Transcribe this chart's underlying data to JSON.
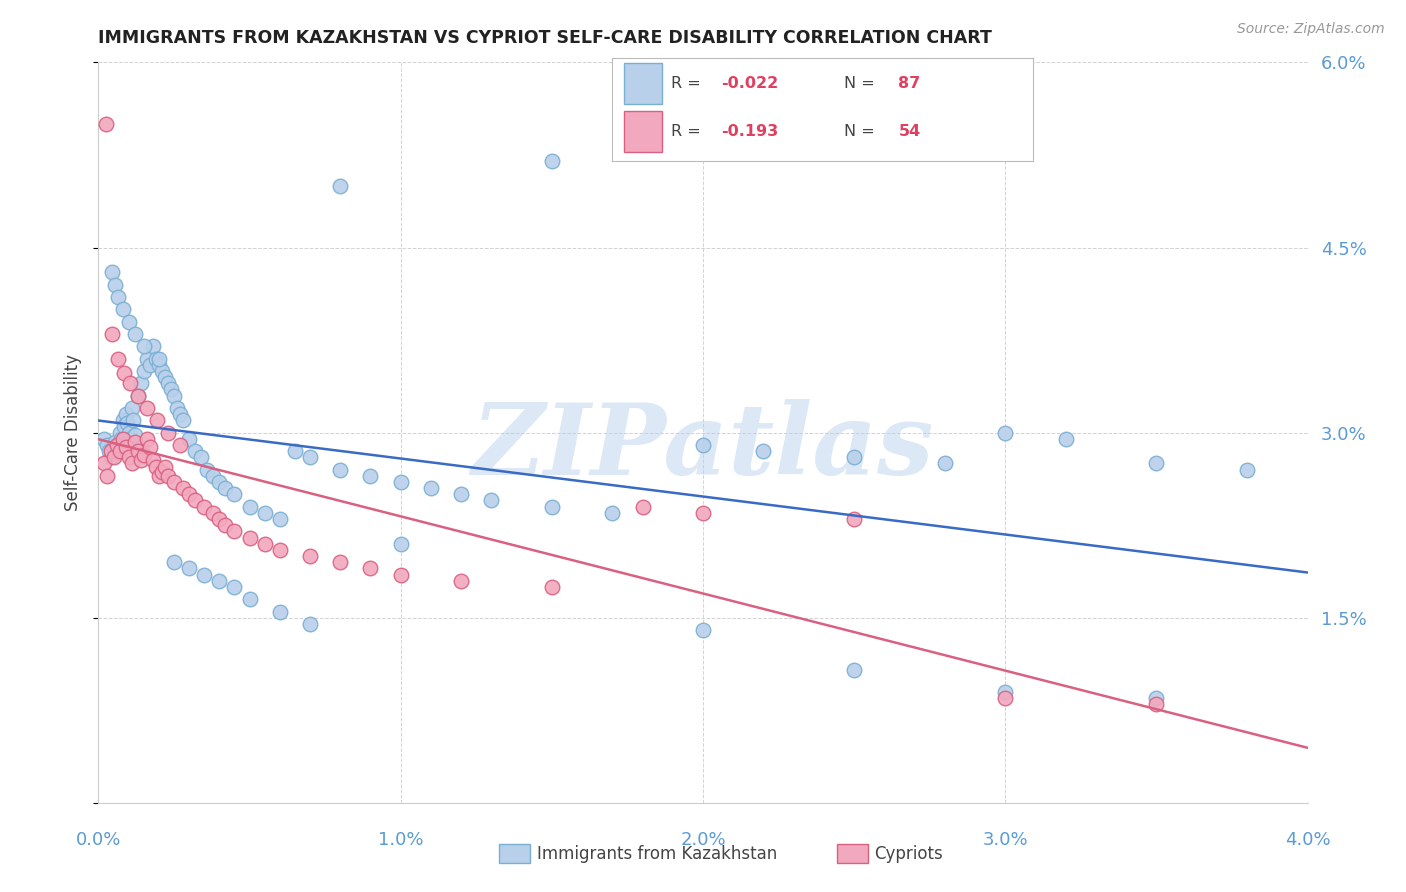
{
  "title": "IMMIGRANTS FROM KAZAKHSTAN VS CYPRIOT SELF-CARE DISABILITY CORRELATION CHART",
  "source": "Source: ZipAtlas.com",
  "ylabel": "Self-Care Disability",
  "x_min": 0.0,
  "x_max": 0.04,
  "y_min": 0.0,
  "y_max": 0.06,
  "x_ticks": [
    0.0,
    0.01,
    0.02,
    0.03,
    0.04
  ],
  "x_tick_labels": [
    "0.0%",
    "1.0%",
    "2.0%",
    "3.0%",
    "4.0%"
  ],
  "y_ticks": [
    0.0,
    0.015,
    0.03,
    0.045,
    0.06
  ],
  "y_tick_labels": [
    "",
    "1.5%",
    "3.0%",
    "4.5%",
    "6.0%"
  ],
  "series_blue": {
    "color": "#b8d0ea",
    "edge_color": "#7aafd4",
    "trend_color": "#3a6bc4",
    "x": [
      0.0002,
      0.0003,
      0.00035,
      0.0004,
      0.0005,
      0.00055,
      0.0006,
      0.00065,
      0.0007,
      0.00075,
      0.0008,
      0.00085,
      0.0009,
      0.00095,
      0.001,
      0.00105,
      0.0011,
      0.00115,
      0.0012,
      0.0013,
      0.0014,
      0.0015,
      0.0016,
      0.0017,
      0.0018,
      0.0019,
      0.002,
      0.0021,
      0.0022,
      0.0023,
      0.0024,
      0.0025,
      0.0026,
      0.0027,
      0.0028,
      0.003,
      0.0032,
      0.0034,
      0.0036,
      0.0038,
      0.004,
      0.0042,
      0.0045,
      0.005,
      0.0055,
      0.006,
      0.0065,
      0.007,
      0.008,
      0.009,
      0.01,
      0.011,
      0.012,
      0.013,
      0.015,
      0.017,
      0.02,
      0.022,
      0.025,
      0.028,
      0.03,
      0.032,
      0.035,
      0.038,
      0.00045,
      0.00055,
      0.00065,
      0.0008,
      0.001,
      0.0012,
      0.0015,
      0.002,
      0.0025,
      0.003,
      0.0035,
      0.004,
      0.0045,
      0.005,
      0.006,
      0.007,
      0.008,
      0.01,
      0.015,
      0.02,
      0.025,
      0.03,
      0.035
    ],
    "y": [
      0.0295,
      0.029,
      0.0285,
      0.028,
      0.0288,
      0.0292,
      0.0285,
      0.029,
      0.03,
      0.0295,
      0.031,
      0.0305,
      0.0315,
      0.0308,
      0.03,
      0.0295,
      0.032,
      0.031,
      0.0298,
      0.033,
      0.034,
      0.035,
      0.036,
      0.0355,
      0.037,
      0.036,
      0.0355,
      0.035,
      0.0345,
      0.034,
      0.0335,
      0.033,
      0.032,
      0.0315,
      0.031,
      0.0295,
      0.0285,
      0.028,
      0.027,
      0.0265,
      0.026,
      0.0255,
      0.025,
      0.024,
      0.0235,
      0.023,
      0.0285,
      0.028,
      0.027,
      0.0265,
      0.026,
      0.0255,
      0.025,
      0.0245,
      0.024,
      0.0235,
      0.029,
      0.0285,
      0.028,
      0.0275,
      0.03,
      0.0295,
      0.0275,
      0.027,
      0.043,
      0.042,
      0.041,
      0.04,
      0.039,
      0.038,
      0.037,
      0.036,
      0.0195,
      0.019,
      0.0185,
      0.018,
      0.0175,
      0.0165,
      0.0155,
      0.0145,
      0.05,
      0.021,
      0.052,
      0.014,
      0.0108,
      0.009,
      0.0085
    ]
  },
  "series_pink": {
    "color": "#f2a8be",
    "edge_color": "#d96080",
    "trend_color": "#d96080",
    "x": [
      0.0002,
      0.0003,
      0.0004,
      0.0005,
      0.0006,
      0.0007,
      0.0008,
      0.0009,
      0.001,
      0.0011,
      0.0012,
      0.0013,
      0.0014,
      0.0015,
      0.0016,
      0.0017,
      0.0018,
      0.0019,
      0.002,
      0.0021,
      0.0022,
      0.0023,
      0.0025,
      0.0028,
      0.003,
      0.0032,
      0.0035,
      0.0038,
      0.004,
      0.0042,
      0.0045,
      0.005,
      0.0055,
      0.006,
      0.007,
      0.008,
      0.009,
      0.01,
      0.012,
      0.015,
      0.018,
      0.02,
      0.025,
      0.03,
      0.035,
      0.00025,
      0.00045,
      0.00065,
      0.00085,
      0.00105,
      0.0013,
      0.0016,
      0.00195,
      0.0023,
      0.0027
    ],
    "y": [
      0.0275,
      0.0265,
      0.0285,
      0.028,
      0.029,
      0.0285,
      0.0295,
      0.0288,
      0.028,
      0.0275,
      0.0292,
      0.0285,
      0.0278,
      0.0282,
      0.0295,
      0.0288,
      0.0278,
      0.0272,
      0.0265,
      0.0268,
      0.0272,
      0.0265,
      0.026,
      0.0255,
      0.025,
      0.0245,
      0.024,
      0.0235,
      0.023,
      0.0225,
      0.022,
      0.0215,
      0.021,
      0.0205,
      0.02,
      0.0195,
      0.019,
      0.0185,
      0.018,
      0.0175,
      0.024,
      0.0235,
      0.023,
      0.0085,
      0.008,
      0.055,
      0.038,
      0.036,
      0.0348,
      0.034,
      0.033,
      0.032,
      0.031,
      0.03,
      0.029
    ]
  },
  "background_color": "#ffffff",
  "grid_color": "#c8c8c8",
  "title_color": "#222222",
  "tick_label_color": "#5b9bd5",
  "watermark_color": "#dce8f5"
}
